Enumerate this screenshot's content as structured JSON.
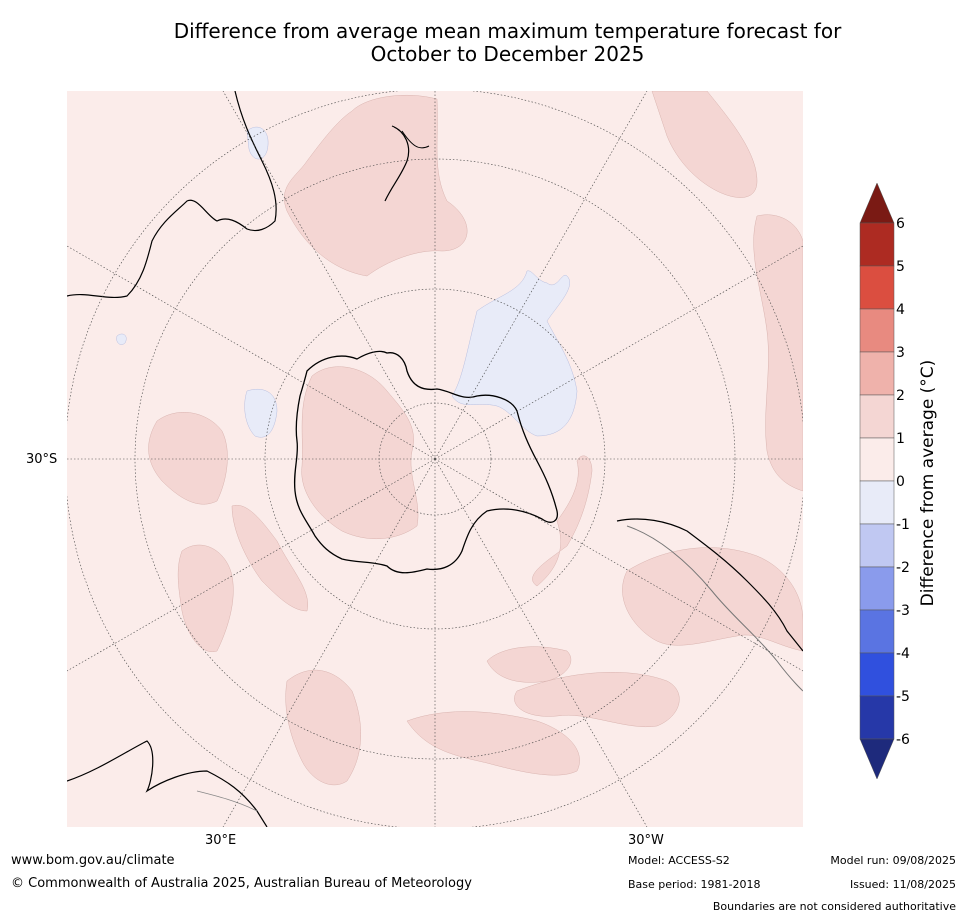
{
  "title_line1": "Difference from average mean maximum temperature forecast for",
  "title_line2": "October to December 2025",
  "map": {
    "projection": "south-polar stereographic",
    "graticule_labels": {
      "lat_30s": "30°S",
      "lon_30e": "30°E",
      "lon_30w": "30°W"
    },
    "background_color": "#fbecea",
    "warm_anomaly_color": "#f4d6d3",
    "cool_anomaly_color": "#e8ebf8"
  },
  "colorbar": {
    "title": "Difference from average (°C)",
    "tick_labels": [
      "6",
      "5",
      "4",
      "3",
      "2",
      "1",
      "0",
      "-1",
      "-2",
      "-3",
      "-4",
      "-5",
      "-6"
    ],
    "bins": [
      {
        "range": "above 6",
        "color": "#7a1a14"
      },
      {
        "range": "5 to 6",
        "color": "#ad2b22"
      },
      {
        "range": "4 to 5",
        "color": "#db4e40"
      },
      {
        "range": "3 to 4",
        "color": "#e88a80"
      },
      {
        "range": "2 to 3",
        "color": "#efb2ab"
      },
      {
        "range": "1 to 2",
        "color": "#f4d6d3"
      },
      {
        "range": "0 to 1",
        "color": "#fbecea"
      },
      {
        "range": "-1 to 0",
        "color": "#e8ebf8"
      },
      {
        "range": "-2 to -1",
        "color": "#c0c8f2"
      },
      {
        "range": "-3 to -2",
        "color": "#8a9bec"
      },
      {
        "range": "-4 to -3",
        "color": "#5a74e2"
      },
      {
        "range": "-5 to -4",
        "color": "#3050de"
      },
      {
        "range": "-6 to -5",
        "color": "#2638a8"
      },
      {
        "range": "below -6",
        "color": "#1e2a7c"
      }
    ]
  },
  "footer": {
    "url": "www.bom.gov.au/climate",
    "copyright": "© Commonwealth of Australia 2025, Australian Bureau of Meteorology",
    "model": "Model: ACCESS-S2",
    "model_run": "Model run: 09/08/2025",
    "base_period": "Base period: 1981-2018",
    "issued": "Issued: 11/08/2025",
    "disclaimer": "Boundaries are not considered authoritative"
  }
}
